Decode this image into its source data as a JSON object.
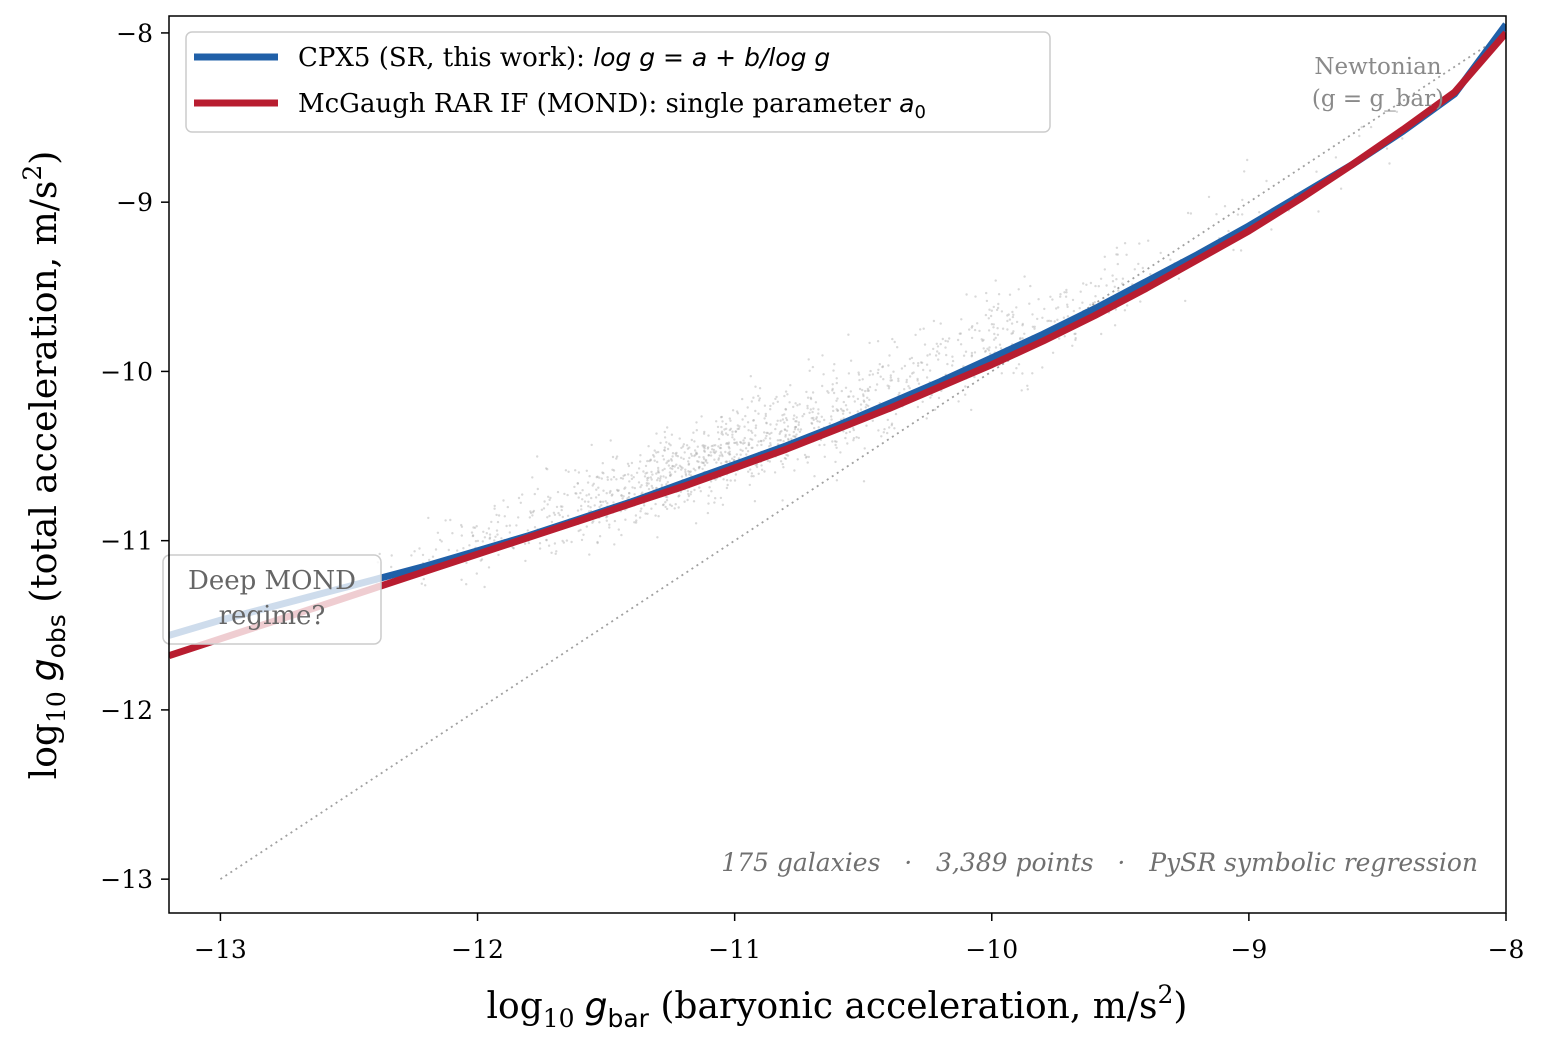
{
  "chart_data": {
    "type": "scatter",
    "xlabel": {
      "prefix": "log",
      "prefix_sub": "10",
      "var": "g",
      "var_sub": "bar",
      "rest": " (baryonic acceleration, m/s",
      "sup": "2",
      "close": ")"
    },
    "ylabel": {
      "prefix": "log",
      "prefix_sub": "10",
      "var": "g",
      "var_sub": "obs",
      "rest": " (total acceleration, m/s",
      "sup": "2",
      "close": ")"
    },
    "xlim": [
      -13.2,
      -8.0
    ],
    "ylim": [
      -13.2,
      -7.9
    ],
    "xticks": [
      -13,
      -12,
      -11,
      -10,
      -9,
      -8
    ],
    "yticks": [
      -13,
      -12,
      -11,
      -10,
      -9,
      -8
    ],
    "xtick_labels": [
      "−13",
      "−12",
      "−11",
      "−10",
      "−9",
      "−8"
    ],
    "ytick_labels": [
      "−13",
      "−12",
      "−11",
      "−10",
      "−9",
      "−8"
    ],
    "grid": false,
    "legend_position": "top-left",
    "series": [
      {
        "name": "CPX5 (SR, this work): log g = a + b/log g",
        "type": "line",
        "color": "#2060a8",
        "x": [
          -13.2,
          -13.0,
          -12.8,
          -12.6,
          -12.4,
          -12.2,
          -12.0,
          -11.8,
          -11.6,
          -11.4,
          -11.2,
          -11.0,
          -10.8,
          -10.6,
          -10.4,
          -10.2,
          -10.0,
          -9.8,
          -9.6,
          -9.4,
          -9.2,
          -9.0,
          -8.8,
          -8.6,
          -8.4,
          -8.2,
          -8.0
        ],
        "y": [
          -11.56,
          -11.47,
          -11.39,
          -11.31,
          -11.23,
          -11.15,
          -11.06,
          -10.97,
          -10.87,
          -10.77,
          -10.66,
          -10.55,
          -10.44,
          -10.32,
          -10.19,
          -10.06,
          -9.92,
          -9.78,
          -9.63,
          -9.47,
          -9.31,
          -9.14,
          -8.96,
          -8.78,
          -8.58,
          -8.36,
          -7.95
        ]
      },
      {
        "name": "McGaugh RAR IF (MOND): single parameter a0",
        "type": "line",
        "color": "#b81d30",
        "x": [
          -13.2,
          -13.0,
          -12.8,
          -12.6,
          -12.4,
          -12.2,
          -12.0,
          -11.8,
          -11.6,
          -11.4,
          -11.2,
          -11.0,
          -10.8,
          -10.6,
          -10.4,
          -10.2,
          -10.0,
          -9.8,
          -9.6,
          -9.4,
          -9.2,
          -9.0,
          -8.8,
          -8.6,
          -8.4,
          -8.2,
          -8.0
        ],
        "y": [
          -11.68,
          -11.58,
          -11.48,
          -11.38,
          -11.28,
          -11.18,
          -11.08,
          -10.98,
          -10.88,
          -10.78,
          -10.68,
          -10.57,
          -10.46,
          -10.34,
          -10.22,
          -10.09,
          -9.96,
          -9.82,
          -9.67,
          -9.51,
          -9.34,
          -9.17,
          -8.98,
          -8.78,
          -8.57,
          -8.35,
          -8.0
        ]
      },
      {
        "name": "g = g_bar",
        "type": "line",
        "style": "dotted",
        "color": "#a0a0a0",
        "x": [
          -13.0,
          -8.0
        ],
        "y": [
          -13.0,
          -8.0
        ]
      },
      {
        "name": "data points",
        "type": "scatter",
        "color": "#aaaaaa",
        "count": 3389,
        "description_of_cloud": "points scattered around the fitted relation, densest between x=-11.6 and x=-9.6",
        "x_range": [
          -12.4,
          -8.4
        ]
      }
    ],
    "legend": [
      {
        "color": "#2060a8",
        "text": "CPX5 (SR, this work): ",
        "math": "log g = a + b/log g"
      },
      {
        "color": "#b81d30",
        "text": "McGaugh RAR IF (MOND): single parameter ",
        "math": "a",
        "math_sub": "0"
      }
    ],
    "annotations": {
      "newtonian_line1": "Newtonian",
      "newtonian_line2": "(g = g_bar)",
      "mond_line1": "Deep MOND",
      "mond_line2": "regime?",
      "footer": "175 galaxies   ·   3,389 points   ·   PySR symbolic regression"
    }
  }
}
